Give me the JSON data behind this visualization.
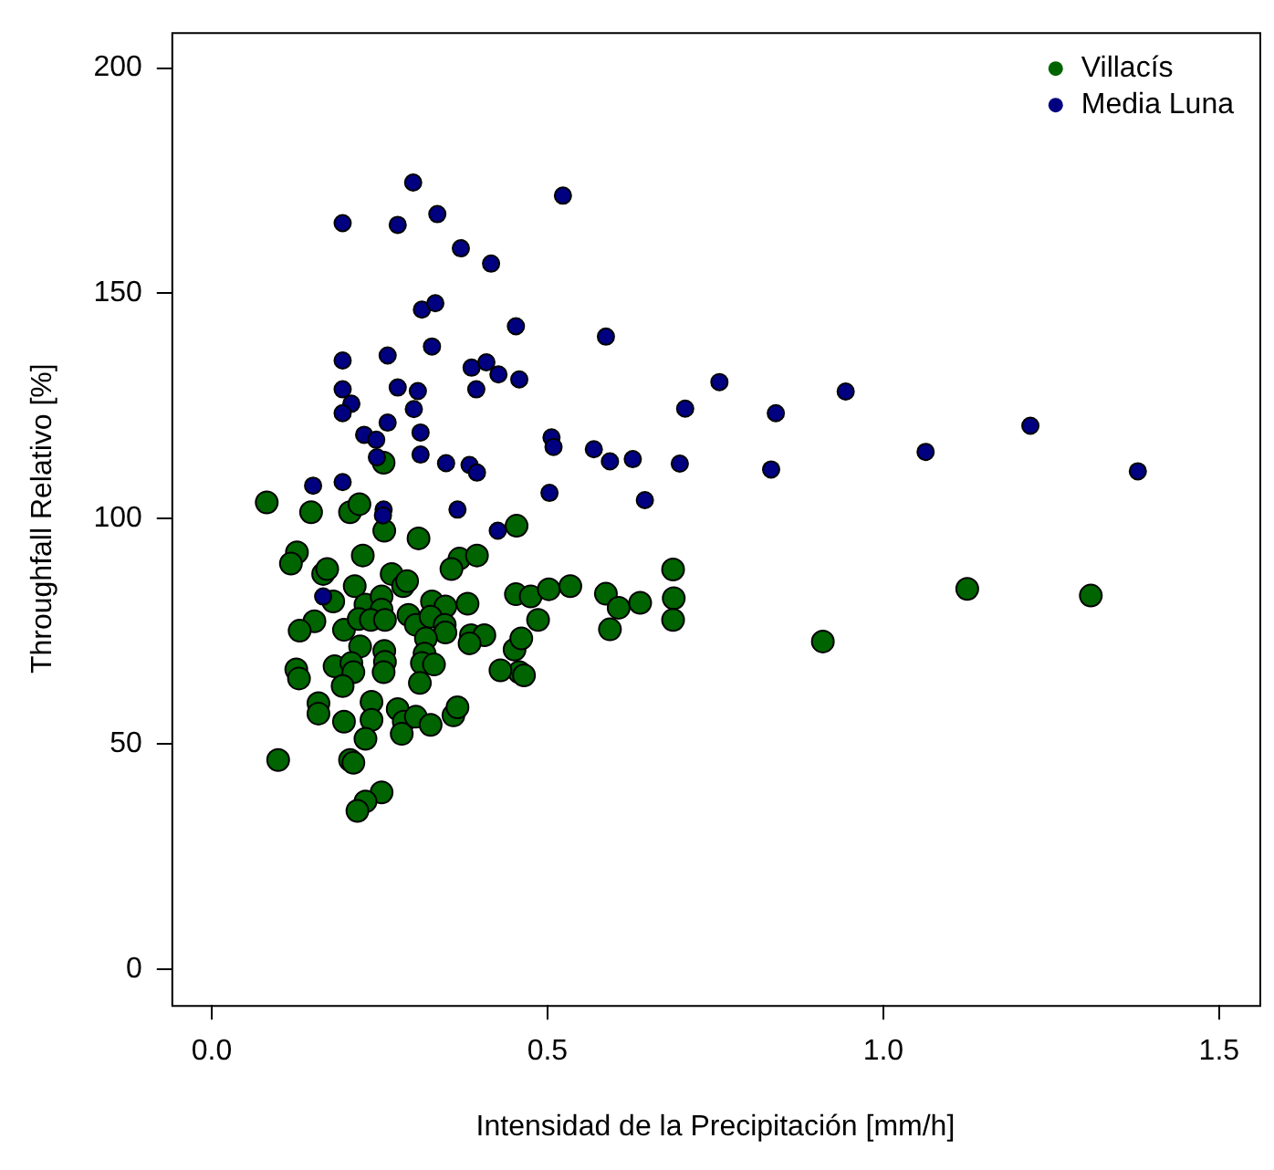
{
  "chart_data": {
    "type": "scatter",
    "xlabel": "Intensidad de la Precipitación [mm/h]",
    "ylabel": "Throughfall Relativo [%]",
    "xlim": [
      -0.06,
      1.56
    ],
    "ylim": [
      -8,
      208
    ],
    "xticks": [
      {
        "value": 0,
        "label": "0.0"
      },
      0.5,
      {
        "value": 1,
        "label": "1.0"
      },
      1.5
    ],
    "yticks": [
      0,
      50,
      100,
      150,
      200
    ],
    "grid": false,
    "legend": "top right",
    "marker": "circle",
    "series": [
      {
        "name": "Villacís",
        "color": "#006400",
        "x": [
          0.082,
          0.148,
          0.206,
          0.22,
          0.256,
          0.257,
          0.308,
          0.127,
          0.118,
          0.225,
          0.166,
          0.172,
          0.213,
          0.268,
          0.285,
          0.291,
          0.181,
          0.229,
          0.253,
          0.253,
          0.328,
          0.348,
          0.369,
          0.357,
          0.395,
          0.381,
          0.453,
          0.153,
          0.131,
          0.197,
          0.219,
          0.237,
          0.258,
          0.293,
          0.304,
          0.326,
          0.347,
          0.348,
          0.319,
          0.386,
          0.406,
          0.384,
          0.451,
          0.458,
          0.43,
          0.221,
          0.257,
          0.258,
          0.256,
          0.317,
          0.313,
          0.331,
          0.31,
          0.183,
          0.208,
          0.211,
          0.126,
          0.13,
          0.195,
          0.159,
          0.159,
          0.197,
          0.238,
          0.238,
          0.229,
          0.277,
          0.286,
          0.283,
          0.304,
          0.326,
          0.36,
          0.366,
          0.099,
          0.206,
          0.211,
          0.253,
          0.229,
          0.217,
          0.454,
          0.687,
          0.688,
          0.687,
          0.475,
          0.502,
          0.534,
          0.587,
          0.606,
          0.638,
          0.593,
          0.486,
          0.461,
          0.465,
          0.91,
          1.125,
          1.309
        ],
        "values": [
          103.6,
          101.4,
          101.4,
          103.2,
          112.4,
          97.3,
          95.6,
          92.5,
          90,
          91.8,
          87.7,
          88.8,
          85,
          87.7,
          85,
          86.1,
          81.6,
          80.9,
          82.7,
          79.8,
          81.6,
          80.5,
          91.1,
          88.8,
          91.8,
          81.1,
          83.2,
          77.2,
          75.1,
          75.3,
          77.7,
          77.5,
          77.5,
          78.6,
          76.4,
          78.2,
          76.4,
          74.7,
          73.4,
          74.1,
          74.1,
          72.3,
          70.9,
          65.9,
          66.3,
          71.6,
          70.6,
          68.2,
          65.9,
          70,
          67.9,
          67.6,
          63.5,
          67.2,
          67.9,
          65.9,
          66.5,
          64.5,
          62.8,
          59,
          56.7,
          54.9,
          59.3,
          55.3,
          51.1,
          57.7,
          54.9,
          52.2,
          56,
          54.2,
          56.3,
          58.1,
          46.4,
          46.4,
          45.8,
          39.2,
          37.2,
          35.1,
          98.4,
          88.7,
          82.3,
          77.5,
          82.7,
          84.3,
          85,
          83.3,
          80.2,
          81.3,
          75.4,
          77.5,
          73.4,
          65.2,
          72.7,
          84.4,
          82.9
        ]
      },
      {
        "name": "Media Luna",
        "color": "#000080",
        "x": [
          0.3,
          0.195,
          0.277,
          0.336,
          0.371,
          0.416,
          0.523,
          0.313,
          0.333,
          0.453,
          0.328,
          0.195,
          0.262,
          0.387,
          0.409,
          0.427,
          0.458,
          0.195,
          0.208,
          0.195,
          0.277,
          0.307,
          0.394,
          0.301,
          0.262,
          0.311,
          0.227,
          0.245,
          0.311,
          0.349,
          0.384,
          0.395,
          0.246,
          0.151,
          0.195,
          0.256,
          0.255,
          0.366,
          0.426,
          0.166,
          0.587,
          0.756,
          0.705,
          0.84,
          0.944,
          0.506,
          0.509,
          0.569,
          0.593,
          0.627,
          0.697,
          0.833,
          0.503,
          0.645,
          1.063,
          1.219,
          1.379
        ],
        "values": [
          174.6,
          165.6,
          165.2,
          167.6,
          160,
          156.6,
          171.7,
          146.4,
          147.8,
          142.7,
          138.2,
          135.1,
          136.2,
          133.5,
          134.7,
          132,
          130.9,
          128.7,
          125.5,
          123.4,
          129.1,
          128.3,
          128.7,
          124.3,
          121.3,
          119.1,
          118.6,
          117.5,
          114.2,
          112.3,
          111.9,
          110.2,
          113.6,
          107.3,
          108.1,
          102,
          100.7,
          102,
          97.3,
          82.7,
          140.4,
          130.3,
          124.4,
          123.4,
          128.2,
          118,
          115.9,
          115.4,
          112.7,
          113.2,
          112.2,
          110.9,
          105.7,
          104.1,
          114.8,
          120.6,
          110.5
        ]
      }
    ]
  }
}
